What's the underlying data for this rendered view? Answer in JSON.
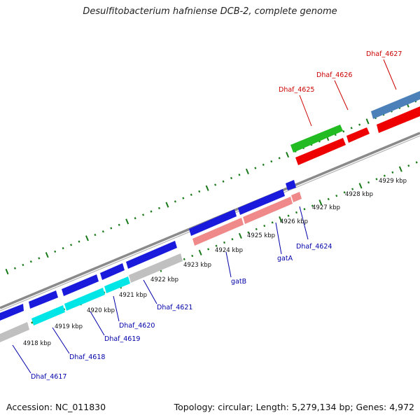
{
  "title": "Desulfitobacterium hafniense DCB-2, complete genome",
  "footer": {
    "accession": "Accession: NC_011830",
    "summary": "Topology: circular; Length: 5,279,134 bp; Genes: 4,972"
  },
  "colors": {
    "forward_label": "#cc0000",
    "reverse_label": "#0000aa",
    "tick": "#1a7a1a",
    "backbone": "#888888"
  },
  "ruler_labels": [
    "4918 kbp",
    "4919 kbp",
    "4920 kbp",
    "4921 kbp",
    "4922 kbp",
    "4923 kbp",
    "4924 kbp",
    "4925 kbp",
    "4926 kbp",
    "4927 kbp",
    "4928 kbp",
    "4929 kbp"
  ],
  "forward_genes": [
    {
      "label": "Dhaf_4625",
      "color": "#cc0000"
    },
    {
      "label": "Dhaf_4626",
      "color": "#cc0000"
    },
    {
      "label": "Dhaf_4627",
      "color": "#cc0000"
    }
  ],
  "reverse_genes": [
    {
      "label": "Dhaf_4617",
      "color": "#0000aa"
    },
    {
      "label": "Dhaf_4618",
      "color": "#0000aa"
    },
    {
      "label": "Dhaf_4619",
      "color": "#0000aa"
    },
    {
      "label": "Dhaf_4620",
      "color": "#0000aa"
    },
    {
      "label": "Dhaf_4621",
      "color": "#0000aa"
    },
    {
      "label": "gatB",
      "color": "#0000aa"
    },
    {
      "label": "gatA",
      "color": "#0000aa"
    },
    {
      "label": "Dhaf_4624",
      "color": "#0000aa"
    }
  ]
}
